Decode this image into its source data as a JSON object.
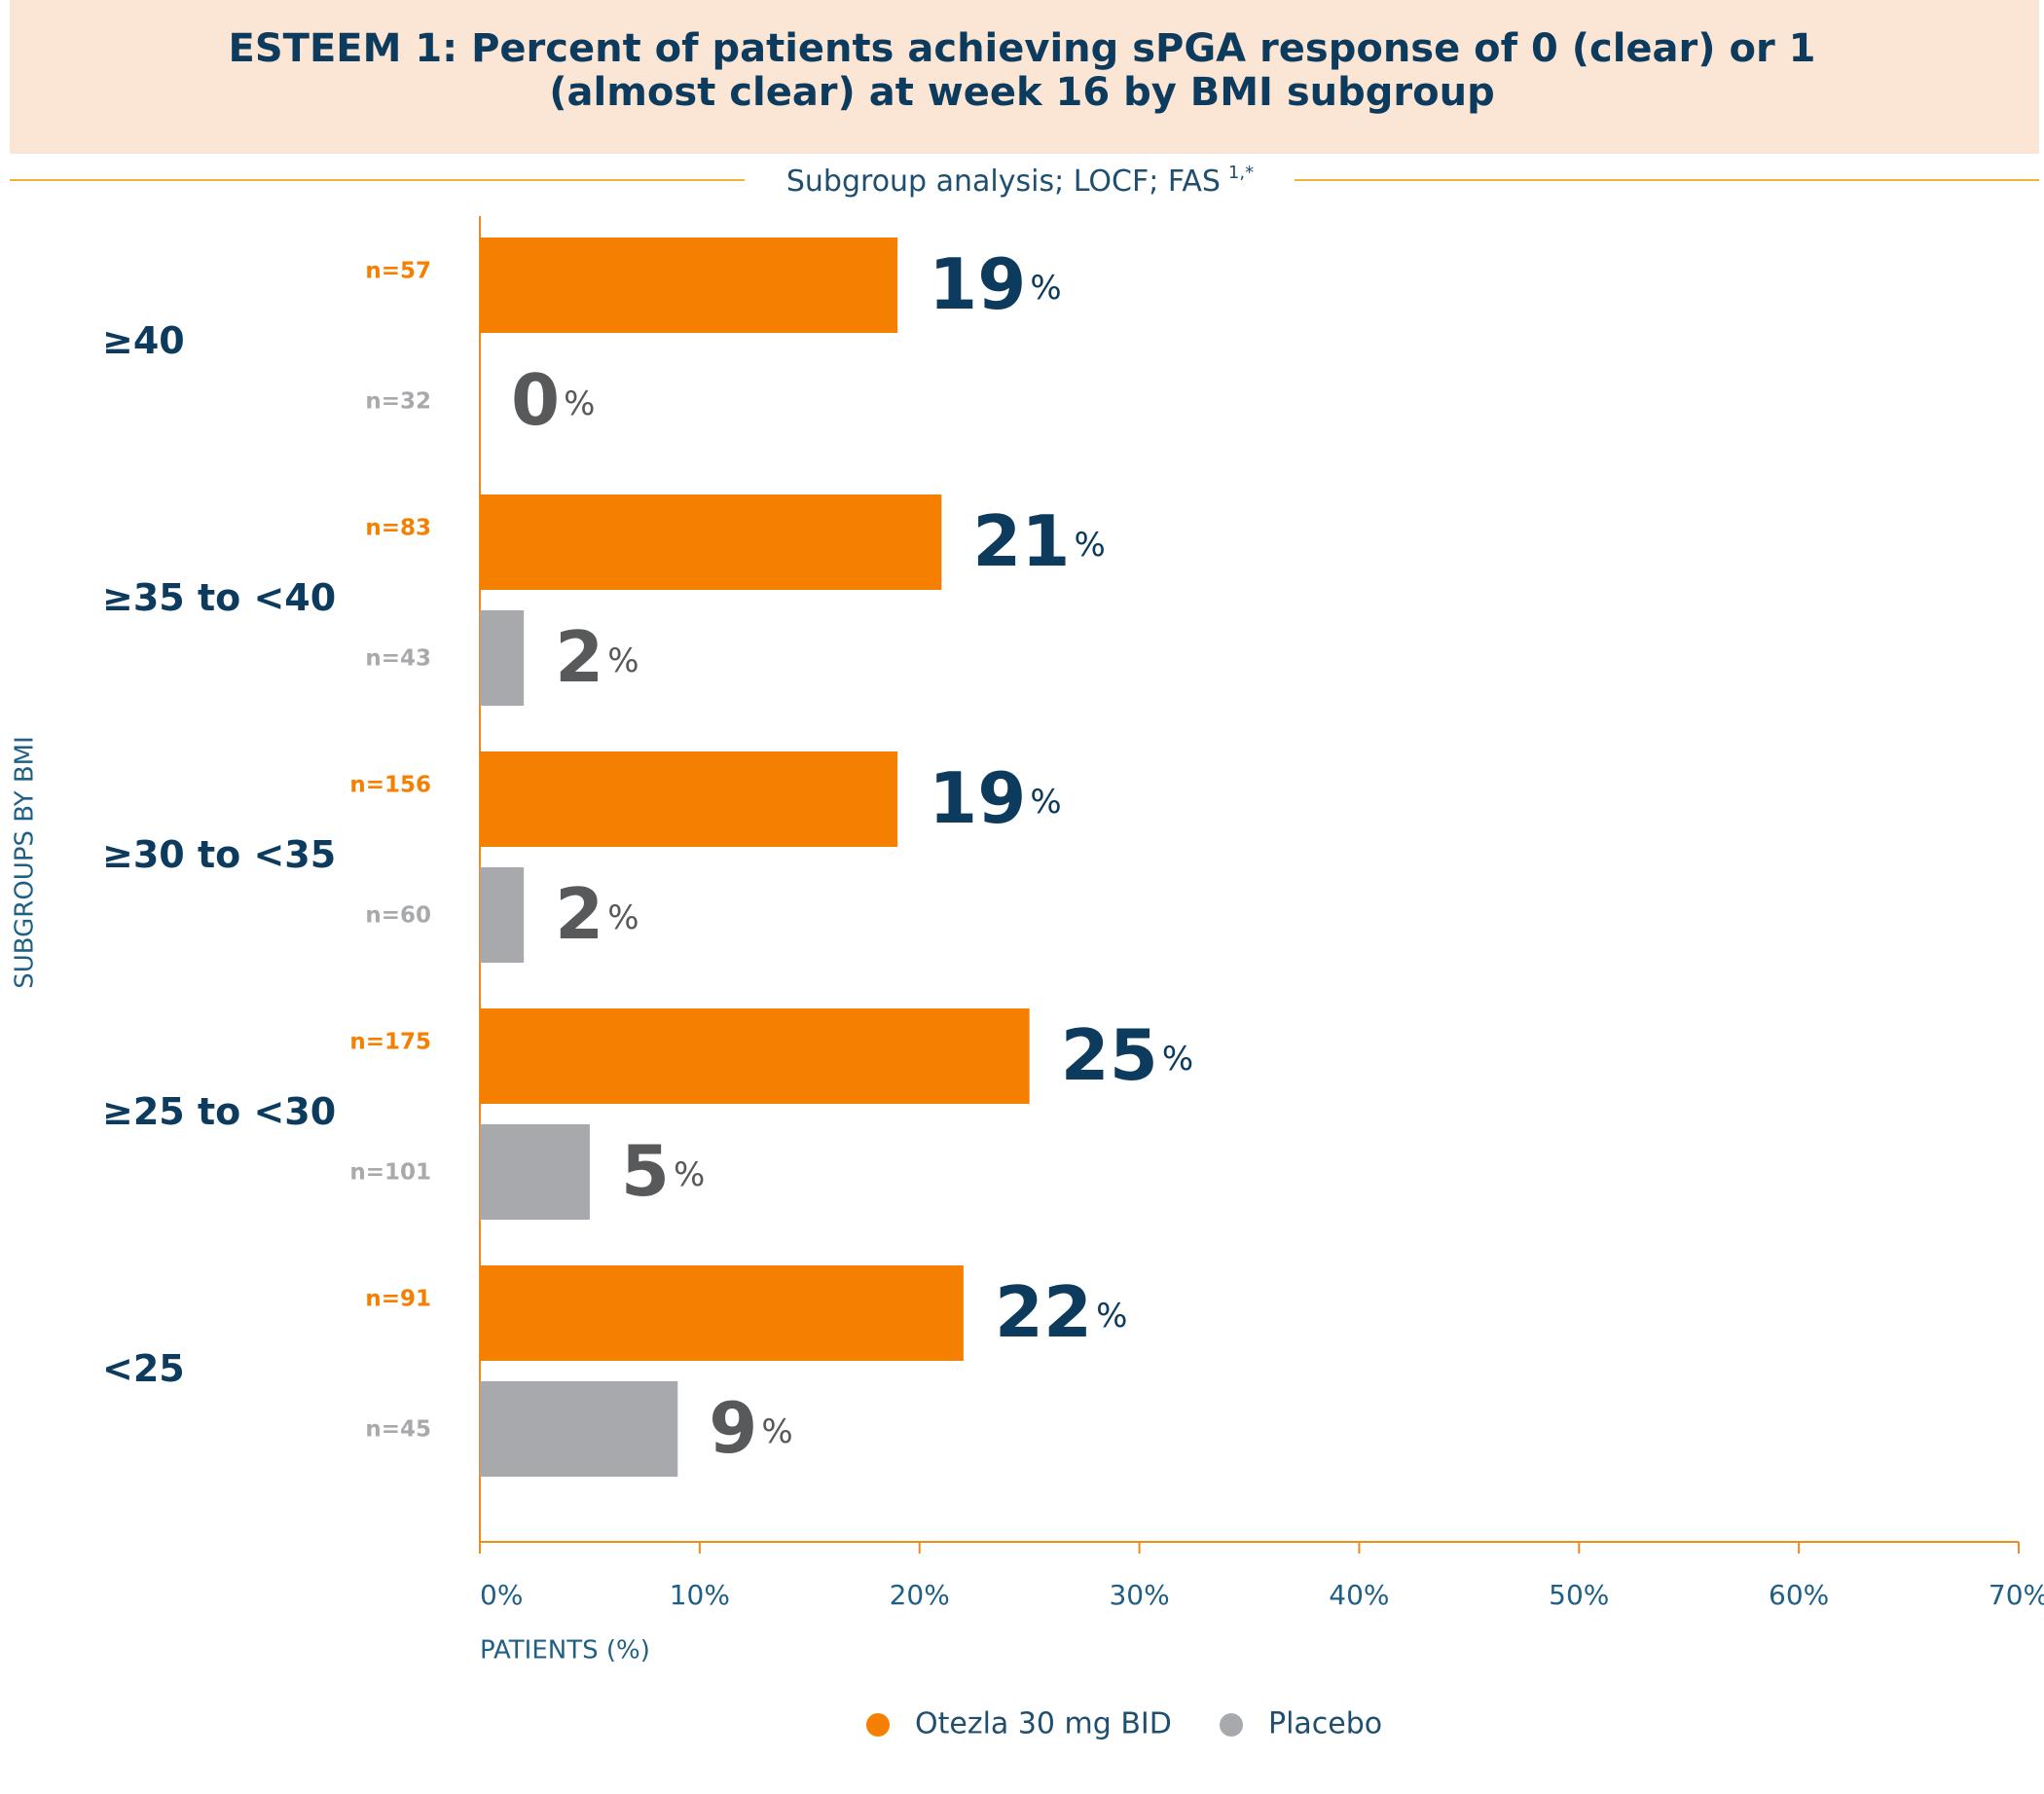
{
  "chart_data": {
    "type": "bar",
    "orientation": "horizontal",
    "title": "ESTEEM 1: Percent of patients achieving sPGA response of 0 (clear) or 1 (almost clear) at week 16 by BMI subgroup",
    "subtitle": "Subgroup analysis; LOCF; FAS",
    "subtitle_note": "1,*",
    "x_label": "PATIENTS (%)",
    "y_label": "SUBGROUPS BY BMI",
    "categories": [
      "≥40",
      "≥35 to <40",
      "≥30 to <35",
      "≥25 to <30",
      "<25"
    ],
    "series": [
      {
        "name": "Otezla 30 mg BID",
        "color": "#f57f00",
        "label_color": "#0d3b5e",
        "values": [
          19,
          21,
          19,
          25,
          22
        ],
        "value_labels": [
          "19%",
          "21%",
          "19%",
          "25%",
          "22%"
        ],
        "n_labels": [
          "n=57",
          "n=83",
          "n=156",
          "n=175",
          "n=91"
        ]
      },
      {
        "name": "Placebo",
        "color": "#a7a9ac",
        "label_color": "#58595b",
        "values": [
          0,
          2,
          2,
          5,
          9
        ],
        "value_labels": [
          "0%",
          "2%",
          "2%",
          "5%",
          "9%"
        ],
        "n_labels": [
          "n=32",
          "n=43",
          "n=60",
          "n=101",
          "n=45"
        ]
      }
    ],
    "xlim": [
      0,
      70
    ],
    "xticks": [
      {
        "value": 0,
        "label": "0%"
      },
      {
        "value": 10,
        "label": "10%"
      },
      {
        "value": 20,
        "label": "20%"
      },
      {
        "value": 30,
        "label": "30%"
      },
      {
        "value": 40,
        "label": "40%"
      },
      {
        "value": 50,
        "label": "50%"
      },
      {
        "value": 60,
        "label": "60%"
      },
      {
        "value": 70,
        "label": "70%"
      }
    ],
    "grid": false
  }
}
